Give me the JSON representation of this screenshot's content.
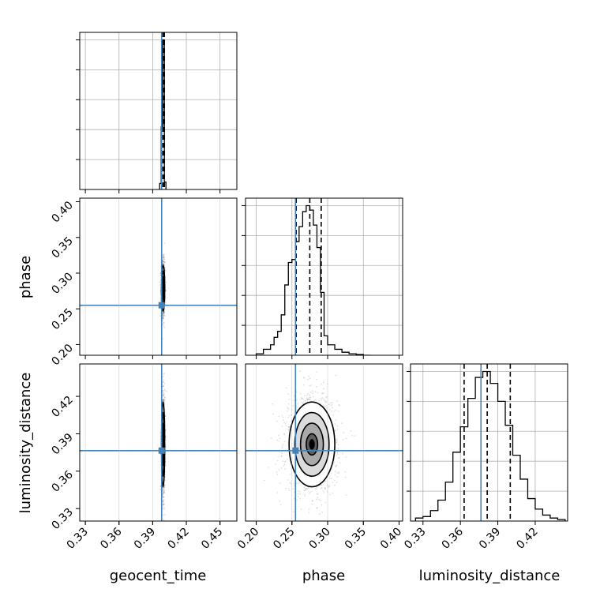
{
  "chart_data": {
    "type": "corner",
    "parameters": [
      "geocent_time",
      "phase",
      "luminosity_distance"
    ],
    "truth": {
      "geocent_time": 0.398,
      "phase": 0.255,
      "luminosity_distance": 0.3765
    },
    "axes": {
      "geocent_time": {
        "label": "geocent_time",
        "lim": [
          0.325,
          0.465
        ],
        "ticks": [
          "0.33",
          "0.36",
          "0.39",
          "0.42",
          "0.45"
        ],
        "tick_values": [
          0.33,
          0.36,
          0.39,
          0.42,
          0.45
        ]
      },
      "phase": {
        "label": "phase",
        "lim": [
          0.185,
          0.405
        ],
        "ticks": [
          "0.20",
          "0.25",
          "0.30",
          "0.35",
          "0.40"
        ],
        "tick_values": [
          0.2,
          0.25,
          0.3,
          0.35,
          0.4
        ]
      },
      "luminosity_distance": {
        "label": "luminosity_distance",
        "lim": [
          0.32,
          0.446
        ],
        "ticks": [
          "0.33",
          "0.36",
          "0.39",
          "0.42"
        ],
        "tick_values": [
          0.33,
          0.36,
          0.39,
          0.42
        ]
      }
    },
    "histograms": {
      "geocent_time": {
        "bin_edges": [
          0.3962,
          0.3976,
          0.399,
          0.4004,
          0.4018
        ],
        "counts": [
          0.04,
          0.42,
          1.0,
          0.05
        ],
        "quantiles": [
          0.3982,
          0.3993,
          0.4004
        ]
      },
      "phase": {
        "bin_edges": [
          0.2,
          0.21,
          0.22,
          0.225,
          0.23,
          0.235,
          0.24,
          0.245,
          0.25,
          0.255,
          0.26,
          0.265,
          0.27,
          0.275,
          0.28,
          0.285,
          0.29,
          0.295,
          0.3,
          0.31,
          0.32,
          0.33,
          0.34,
          0.35,
          0.36
        ],
        "counts": [
          0.01,
          0.04,
          0.07,
          0.12,
          0.16,
          0.27,
          0.47,
          0.62,
          0.64,
          0.76,
          0.86,
          0.96,
          1.0,
          0.97,
          0.87,
          0.72,
          0.42,
          0.13,
          0.07,
          0.04,
          0.02,
          0.01,
          0.005,
          0.0
        ],
        "quantiles": [
          0.256,
          0.275,
          0.291
        ]
      },
      "luminosity_distance": {
        "bin_edges": [
          0.324,
          0.33,
          0.336,
          0.342,
          0.348,
          0.354,
          0.36,
          0.366,
          0.372,
          0.378,
          0.384,
          0.39,
          0.396,
          0.402,
          0.408,
          0.414,
          0.42,
          0.426,
          0.432,
          0.438,
          0.444
        ],
        "counts": [
          0.02,
          0.03,
          0.07,
          0.14,
          0.26,
          0.46,
          0.63,
          0.82,
          0.96,
          1.0,
          0.92,
          0.8,
          0.64,
          0.44,
          0.28,
          0.15,
          0.08,
          0.04,
          0.02,
          0.01
        ],
        "quantiles": [
          0.363,
          0.3815,
          0.4
        ]
      }
    },
    "joint": [
      {
        "x": "geocent_time",
        "y": "phase",
        "center": [
          0.3993,
          0.279
        ],
        "sigma": [
          0.0007,
          0.016
        ],
        "contour_scales": [
          0.5,
          1.0,
          1.5,
          2.0
        ]
      },
      {
        "x": "geocent_time",
        "y": "luminosity_distance",
        "center": [
          0.3993,
          0.3815
        ],
        "sigma": [
          0.0007,
          0.017
        ],
        "contour_scales": [
          0.5,
          1.0,
          1.5,
          2.0
        ]
      },
      {
        "x": "phase",
        "y": "luminosity_distance",
        "center": [
          0.278,
          0.3815
        ],
        "sigma": [
          0.016,
          0.017
        ],
        "contour_scales": [
          0.5,
          1.0,
          1.5,
          2.0
        ]
      }
    ],
    "colors": {
      "truth": "#4682b4",
      "hist": "#000000",
      "grid": "#b0b0b0",
      "points": "#000000"
    },
    "grid": true
  }
}
